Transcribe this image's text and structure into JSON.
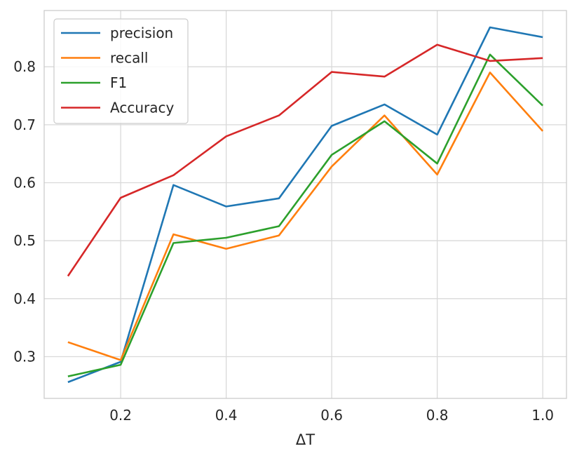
{
  "chart_data": {
    "type": "line",
    "xlabel": "ΔT",
    "ylabel": "",
    "title": "",
    "x": [
      0.1,
      0.2,
      0.3,
      0.4,
      0.5,
      0.6,
      0.7,
      0.8,
      0.9,
      1.0
    ],
    "xlim": [
      0.055,
      1.045
    ],
    "ylim": [
      0.228,
      0.897
    ],
    "xticks": [
      0.2,
      0.4,
      0.6,
      0.8,
      1.0
    ],
    "xtick_labels": [
      "0.2",
      "0.4",
      "0.6",
      "0.8",
      "1.0"
    ],
    "yticks": [
      0.3,
      0.4,
      0.5,
      0.6,
      0.7,
      0.8
    ],
    "ytick_labels": [
      "0.3",
      "0.4",
      "0.5",
      "0.6",
      "0.7",
      "0.8"
    ],
    "grid": true,
    "legend_position": "top-left",
    "series": [
      {
        "name": "precision",
        "color": "#1f77b4",
        "values": [
          0.256,
          0.291,
          0.596,
          0.559,
          0.573,
          0.698,
          0.735,
          0.683,
          0.868,
          0.851
        ]
      },
      {
        "name": "recall",
        "color": "#ff7f0e",
        "values": [
          0.325,
          0.294,
          0.511,
          0.486,
          0.509,
          0.628,
          0.716,
          0.614,
          0.79,
          0.689
        ]
      },
      {
        "name": "F1",
        "color": "#2ca02c",
        "values": [
          0.266,
          0.286,
          0.496,
          0.505,
          0.525,
          0.648,
          0.706,
          0.633,
          0.821,
          0.733
        ]
      },
      {
        "name": "Accuracy",
        "color": "#d62728",
        "values": [
          0.439,
          0.574,
          0.613,
          0.68,
          0.716,
          0.791,
          0.783,
          0.838,
          0.81,
          0.815
        ]
      }
    ]
  }
}
